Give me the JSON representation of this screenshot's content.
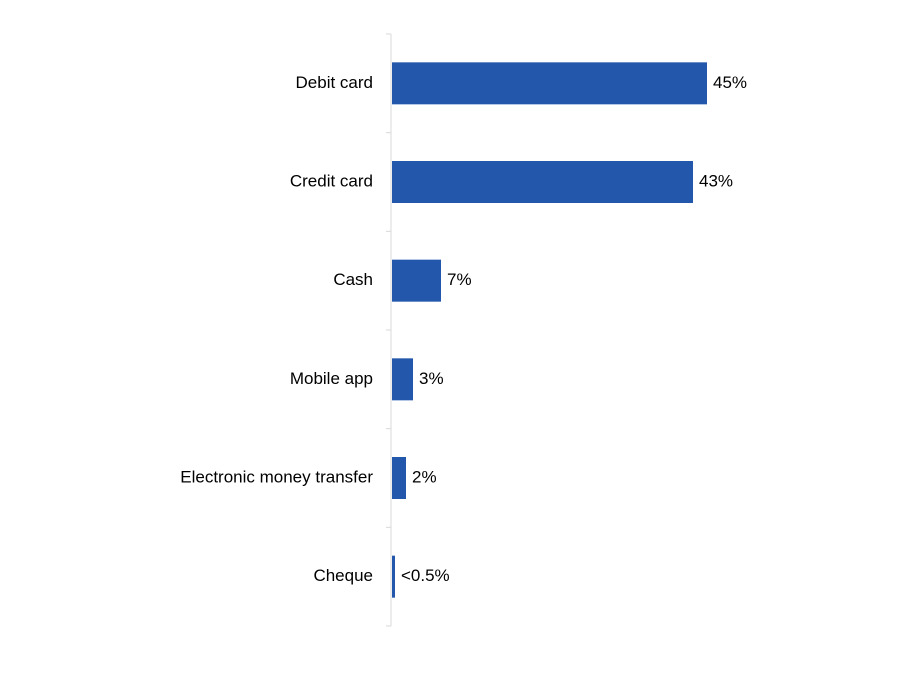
{
  "chart_data": {
    "type": "bar",
    "orientation": "horizontal",
    "title": "",
    "xlabel": "",
    "ylabel": "",
    "categories": [
      "Debit card",
      "Credit card",
      "Cash",
      "Mobile app",
      "Electronic money transfer",
      "Cheque"
    ],
    "values": [
      45,
      43,
      7,
      3,
      2,
      0.4
    ],
    "data_labels": [
      "45%",
      "43%",
      "7%",
      "3%",
      "2%",
      "<0.5%"
    ],
    "xlim": [
      0,
      50
    ],
    "grid": false,
    "legend": "none",
    "bar_color": "#2257ab"
  }
}
